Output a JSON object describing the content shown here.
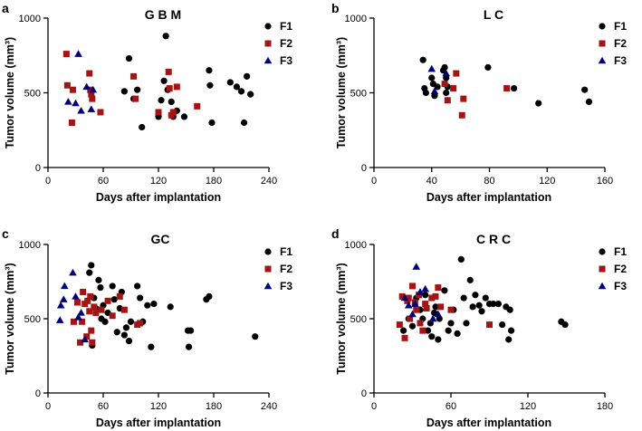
{
  "chart_data": [
    {
      "type": "scatter",
      "panel": "a",
      "title": "G B M",
      "xlabel": "Days after implantation",
      "ylabel": "Tumor volume (mm³)",
      "xlim": [
        0,
        240
      ],
      "ylim": [
        0,
        1000
      ],
      "xticks": [
        0,
        60,
        120,
        180,
        240
      ],
      "yticks": [
        0,
        500,
        1000
      ],
      "legend_position": "top-right",
      "series": [
        {
          "name": "F1",
          "color": "#000000",
          "marker": "circle",
          "x": [
            83,
            88,
            93,
            97,
            102,
            120,
            123,
            126,
            128,
            130,
            134,
            136,
            140,
            148,
            175,
            176,
            178,
            198,
            205,
            210,
            213,
            216,
            220
          ],
          "y": [
            510,
            730,
            460,
            520,
            270,
            340,
            450,
            580,
            880,
            520,
            440,
            340,
            380,
            340,
            650,
            550,
            300,
            570,
            540,
            510,
            300,
            610,
            490
          ]
        },
        {
          "name": "F2",
          "color": "#a31515",
          "marker": "square",
          "x": [
            20,
            21,
            26,
            27,
            45,
            46,
            47,
            48,
            57,
            93,
            95,
            120,
            131,
            132,
            134,
            136,
            140,
            162
          ],
          "y": [
            760,
            550,
            300,
            520,
            630,
            520,
            490,
            460,
            370,
            610,
            460,
            370,
            640,
            530,
            350,
            370,
            540,
            410
          ]
        },
        {
          "name": "F3",
          "color": "#00007a",
          "marker": "triangle",
          "x": [
            22,
            30,
            33,
            36,
            42,
            47,
            49
          ],
          "y": [
            440,
            430,
            760,
            380,
            540,
            390,
            520
          ]
        }
      ]
    },
    {
      "type": "scatter",
      "panel": "b",
      "title": "L C",
      "xlabel": "Days after implantation",
      "ylabel": "Tumor volume (mm³)",
      "xlim": [
        0,
        160
      ],
      "ylim": [
        0,
        1000
      ],
      "xticks": [
        0,
        40,
        80,
        120,
        160
      ],
      "yticks": [
        0,
        500,
        1000
      ],
      "legend_position": "top-right",
      "series": [
        {
          "name": "F1",
          "color": "#000000",
          "marker": "circle",
          "x": [
            34,
            35,
            36,
            40,
            41,
            42,
            44,
            48,
            49,
            50,
            50,
            51,
            79,
            97,
            114,
            146,
            149
          ],
          "y": [
            720,
            530,
            500,
            600,
            560,
            480,
            540,
            650,
            670,
            600,
            500,
            540,
            670,
            530,
            430,
            520,
            440
          ]
        },
        {
          "name": "F2",
          "color": "#a31515",
          "marker": "square",
          "x": [
            49,
            51,
            55,
            57,
            61,
            62,
            92
          ],
          "y": [
            560,
            450,
            530,
            630,
            350,
            460,
            530
          ]
        },
        {
          "name": "F3",
          "color": "#00007a",
          "marker": "triangle",
          "x": [
            40,
            42,
            50
          ],
          "y": [
            660,
            510,
            630
          ]
        }
      ]
    },
    {
      "type": "scatter",
      "panel": "c",
      "title": "GC",
      "xlabel": "Days after implantation",
      "ylabel": "Tumor volume (mm³)",
      "xlim": [
        0,
        240
      ],
      "ylim": [
        0,
        1000
      ],
      "xticks": [
        0,
        60,
        120,
        180,
        240
      ],
      "yticks": [
        0,
        500,
        1000
      ],
      "legend_position": "top-right",
      "series": [
        {
          "name": "F1",
          "color": "#000000",
          "marker": "circle",
          "x": [
            45,
            47,
            48,
            50,
            52,
            55,
            57,
            58,
            60,
            62,
            65,
            70,
            72,
            75,
            78,
            80,
            83,
            85,
            88,
            90,
            97,
            100,
            103,
            108,
            112,
            115,
            133,
            152,
            153,
            155,
            172,
            175,
            225
          ],
          "y": [
            810,
            860,
            320,
            640,
            570,
            760,
            710,
            500,
            590,
            480,
            540,
            720,
            630,
            410,
            570,
            680,
            390,
            440,
            350,
            480,
            720,
            640,
            480,
            590,
            310,
            600,
            580,
            420,
            310,
            420,
            630,
            650,
            380
          ]
        },
        {
          "name": "F2",
          "color": "#a31515",
          "marker": "square",
          "x": [
            28,
            32,
            35,
            37,
            38,
            40,
            42,
            43,
            45,
            46,
            47,
            48,
            50,
            52,
            58,
            65,
            70,
            78,
            83,
            97,
            100
          ],
          "y": [
            480,
            610,
            340,
            480,
            680,
            600,
            380,
            620,
            550,
            650,
            420,
            340,
            580,
            540,
            560,
            620,
            520,
            650,
            560,
            460,
            470
          ]
        },
        {
          "name": "F3",
          "color": "#00007a",
          "marker": "triangle",
          "x": [
            13,
            14,
            17,
            18,
            27,
            30,
            33,
            36,
            40
          ],
          "y": [
            490,
            590,
            630,
            720,
            810,
            650,
            510,
            540,
            360
          ]
        }
      ]
    },
    {
      "type": "scatter",
      "panel": "d",
      "title": "C R C",
      "xlabel": "Days after implantation",
      "ylabel": "Tumor volume (mm³)",
      "xlim": [
        0,
        180
      ],
      "ylim": [
        0,
        1000
      ],
      "xticks": [
        0,
        60,
        120,
        180
      ],
      "yticks": [
        0,
        500,
        1000
      ],
      "legend_position": "top-right",
      "series": [
        {
          "name": "F1",
          "color": "#000000",
          "marker": "circle",
          "x": [
            23,
            27,
            30,
            33,
            36,
            38,
            40,
            42,
            44,
            45,
            47,
            48,
            50,
            51,
            55,
            58,
            60,
            62,
            65,
            68,
            70,
            72,
            75,
            77,
            79,
            82,
            84,
            87,
            90,
            93,
            97,
            100,
            103,
            105,
            106,
            107,
            146,
            149
          ],
          "y": [
            420,
            500,
            450,
            640,
            560,
            500,
            660,
            420,
            470,
            380,
            540,
            580,
            360,
            500,
            690,
            420,
            470,
            560,
            400,
            900,
            640,
            470,
            760,
            580,
            660,
            590,
            550,
            640,
            600,
            600,
            600,
            460,
            580,
            360,
            560,
            420,
            480,
            460
          ]
        },
        {
          "name": "F2",
          "color": "#a31515",
          "marker": "square",
          "x": [
            20,
            22,
            24,
            26,
            27,
            28,
            30,
            32,
            33,
            35,
            36,
            38,
            40,
            41,
            45,
            48,
            50,
            52,
            60,
            90
          ],
          "y": [
            460,
            650,
            370,
            620,
            640,
            500,
            720,
            610,
            560,
            660,
            470,
            420,
            600,
            570,
            640,
            650,
            710,
            580,
            560,
            460
          ]
        },
        {
          "name": "F3",
          "color": "#00007a",
          "marker": "triangle",
          "x": [
            24,
            27,
            30,
            32,
            33,
            36,
            40,
            46,
            50
          ],
          "y": [
            640,
            590,
            530,
            600,
            850,
            680,
            700,
            500,
            530
          ]
        }
      ]
    }
  ]
}
